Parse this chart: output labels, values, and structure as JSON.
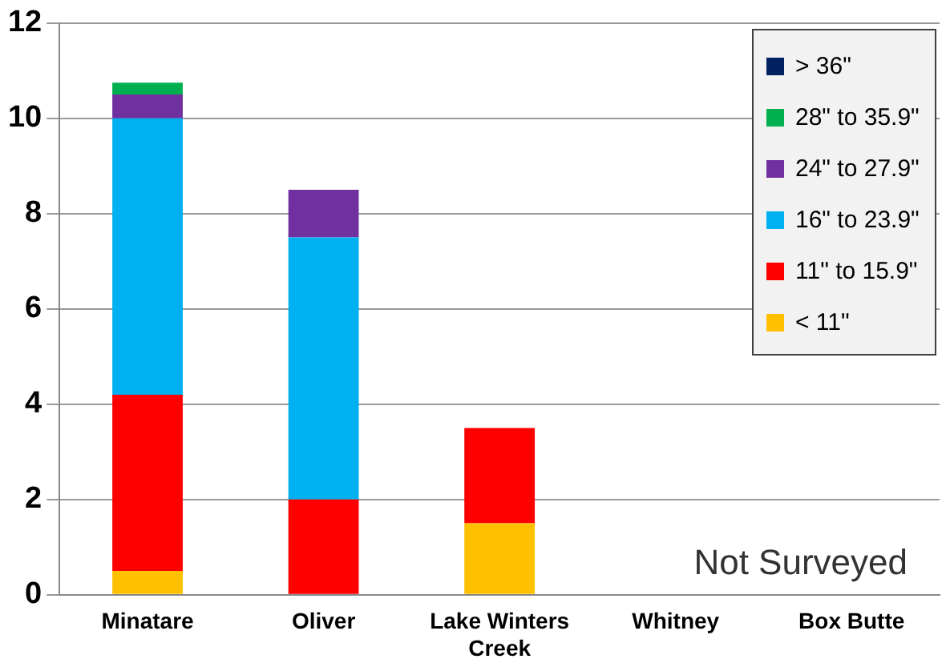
{
  "chart_data": {
    "type": "bar",
    "stacked": true,
    "categories": [
      "Minatare",
      "Oliver",
      "Lake Winters Creek",
      "Whitney",
      "Box Butte"
    ],
    "series": [
      {
        "name": "< 11\"",
        "color": "#ffc000",
        "values": [
          0.5,
          0,
          1.5,
          null,
          null
        ]
      },
      {
        "name": "11\" to 15.9\"",
        "color": "#ff0000",
        "values": [
          3.7,
          2,
          2,
          null,
          null
        ]
      },
      {
        "name": "16\" to 23.9\"",
        "color": "#00b0f0",
        "values": [
          5.8,
          5.5,
          0,
          null,
          null
        ]
      },
      {
        "name": "24\" to 27.9\"",
        "color": "#7030a0",
        "values": [
          0.5,
          1,
          0,
          null,
          null
        ]
      },
      {
        "name": "28\" to 35.9\"",
        "color": "#00b050",
        "values": [
          0.25,
          0,
          0,
          null,
          null
        ]
      },
      {
        "name": "> 36\"",
        "color": "#002060",
        "values": [
          0,
          0,
          0,
          null,
          null
        ]
      }
    ],
    "ylim": [
      0,
      12
    ],
    "yticks": [
      0,
      2,
      4,
      6,
      8,
      10,
      12
    ],
    "grid": "y",
    "legend": "top right",
    "annotations": [
      "Not Surveyed"
    ]
  }
}
